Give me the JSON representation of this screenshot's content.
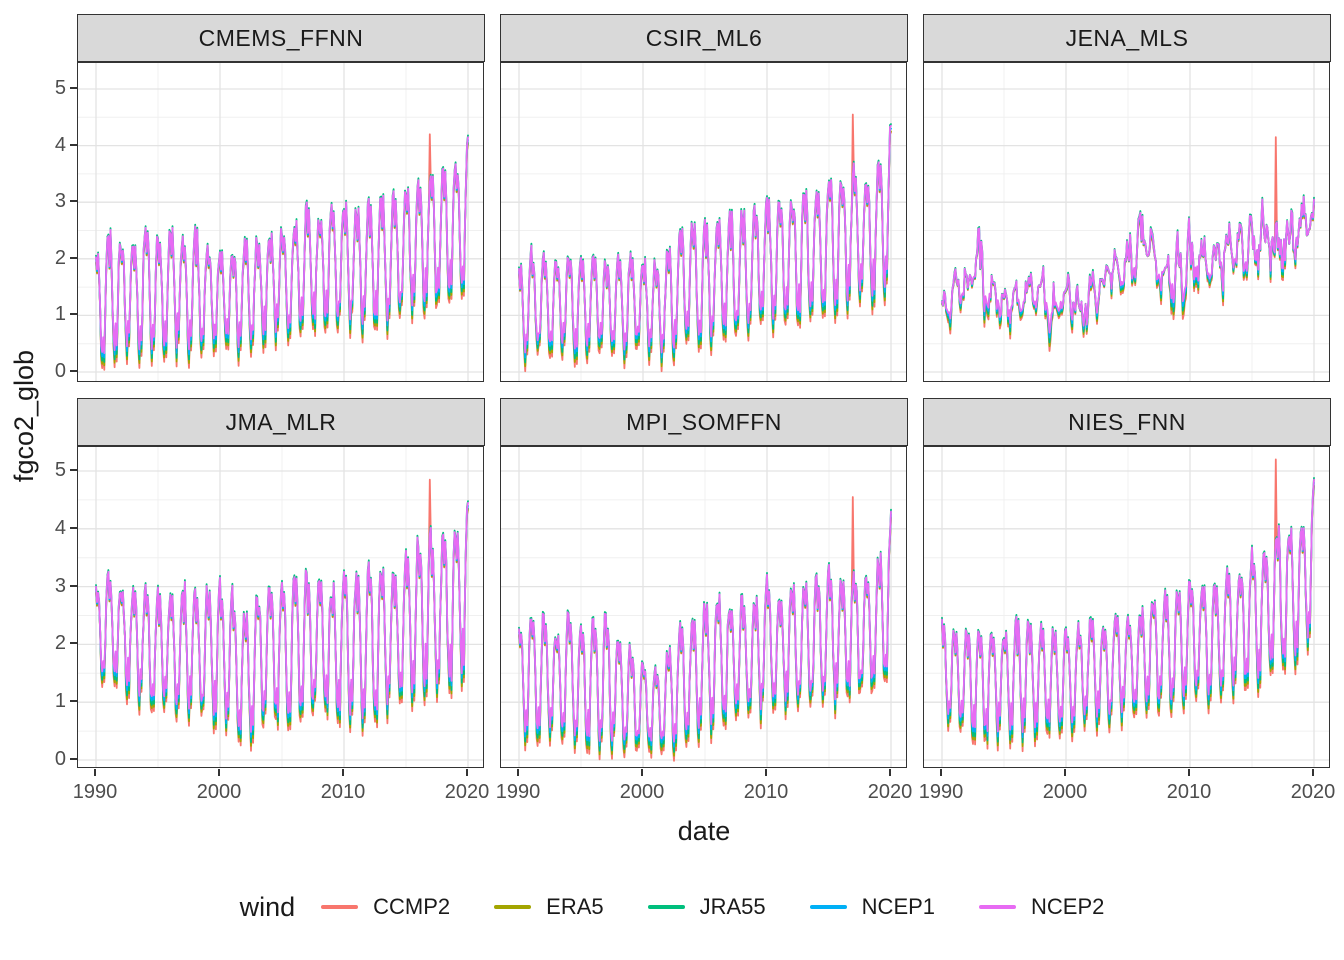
{
  "figure": {
    "y_axis_label": "fgco2_glob",
    "x_axis_label": "date",
    "x_ticks": [
      1990,
      2000,
      2010,
      2020
    ],
    "y_ticks": [
      0,
      1,
      2,
      3,
      4,
      5
    ],
    "panel_background": "#ffffff",
    "strip_fill": "#d9d9d9",
    "panel_border_color": "#333333",
    "grid_major_color": "#e3e3e3",
    "grid_minor_color": "#f0f0f0",
    "tick_label_color": "#4d4d4d"
  },
  "legend": {
    "title": "wind",
    "position": "bottom"
  },
  "chart_data": {
    "type": "line",
    "title": "",
    "xlabel": "date",
    "ylabel": "fgco2_glob",
    "x_range": [
      1990,
      2020
    ],
    "x_resolution": "monthly",
    "y_ticks": [
      0,
      1,
      2,
      3,
      4,
      5
    ],
    "ylim": [
      -0.2,
      5.45
    ],
    "grid": true,
    "legend_position": "bottom",
    "series": [
      {
        "name": "CCMP2",
        "color": "#F8766D"
      },
      {
        "name": "ERA5",
        "color": "#A3A500"
      },
      {
        "name": "JRA55",
        "color": "#00BF7D"
      },
      {
        "name": "NCEP1",
        "color": "#00B0F6"
      },
      {
        "name": "NCEP2",
        "color": "#E76BF3"
      }
    ],
    "facets": [
      {
        "title": "CMEMS_FFNN",
        "noisy": false,
        "years": [
          1990,
          1991,
          1992,
          1993,
          1994,
          1995,
          1996,
          1997,
          1998,
          1999,
          2000,
          2001,
          2002,
          2003,
          2004,
          2005,
          2006,
          2007,
          2008,
          2009,
          2010,
          2011,
          2012,
          2013,
          2014,
          2015,
          2016,
          2017,
          2018,
          2019,
          2020
        ],
        "seasonal_max": [
          2.15,
          2.55,
          2.35,
          2.35,
          2.65,
          2.5,
          2.55,
          2.4,
          2.55,
          2.2,
          2.1,
          2.2,
          2.3,
          2.35,
          2.5,
          2.55,
          2.6,
          2.9,
          2.75,
          2.95,
          3.0,
          2.9,
          3.05,
          3.1,
          3.1,
          3.3,
          3.3,
          3.55,
          3.6,
          3.65,
          4.15
        ],
        "seasonal_min": [
          0.25,
          0.35,
          0.45,
          0.55,
          0.45,
          0.35,
          0.5,
          0.55,
          0.45,
          0.6,
          0.65,
          0.6,
          0.45,
          0.75,
          0.75,
          0.8,
          0.8,
          0.85,
          1.0,
          0.9,
          1.0,
          1.05,
          0.85,
          0.9,
          1.1,
          1.2,
          1.25,
          1.3,
          1.3,
          1.45,
          1.6
        ],
        "end_value": 4.15,
        "ccmp2_spike": {
          "year": 2016.9,
          "value": 4.2
        }
      },
      {
        "title": "CSIR_ML6",
        "noisy": false,
        "years": [
          1990,
          1991,
          1992,
          1993,
          1994,
          1995,
          1996,
          1997,
          1998,
          1999,
          2000,
          2001,
          2002,
          2003,
          2004,
          2005,
          2006,
          2007,
          2008,
          2009,
          2010,
          2011,
          2012,
          2013,
          2014,
          2015,
          2016,
          2017,
          2018,
          2019,
          2020
        ],
        "seasonal_max": [
          1.9,
          2.15,
          2.1,
          2.0,
          2.1,
          2.0,
          2.1,
          1.95,
          2.1,
          2.05,
          2.0,
          1.95,
          2.1,
          2.5,
          2.6,
          2.7,
          2.65,
          2.8,
          2.85,
          2.9,
          3.1,
          3.0,
          3.1,
          3.2,
          3.25,
          3.5,
          3.5,
          3.6,
          3.4,
          3.65,
          4.35
        ],
        "seasonal_min": [
          0.45,
          0.4,
          0.5,
          0.55,
          0.5,
          0.45,
          0.55,
          0.5,
          0.4,
          0.55,
          0.55,
          0.5,
          0.35,
          0.6,
          0.7,
          0.65,
          0.8,
          0.75,
          0.9,
          0.9,
          1.0,
          1.05,
          0.95,
          1.0,
          1.1,
          1.2,
          1.3,
          1.35,
          1.4,
          1.5,
          1.7
        ],
        "end_value": 4.35,
        "ccmp2_spike": {
          "year": 2016.9,
          "value": 4.55
        }
      },
      {
        "title": "JENA_MLS",
        "noisy": true,
        "years": [
          1990,
          1991,
          1992,
          1993,
          1994,
          1995,
          1996,
          1997,
          1998,
          1999,
          2000,
          2001,
          2002,
          2003,
          2004,
          2005,
          2006,
          2007,
          2008,
          2009,
          2010,
          2011,
          2012,
          2013,
          2014,
          2015,
          2016,
          2017,
          2018,
          2019,
          2020
        ],
        "seasonal_max": [
          1.45,
          1.9,
          2.1,
          2.75,
          1.95,
          1.6,
          1.9,
          1.85,
          2.1,
          1.9,
          1.75,
          1.55,
          1.65,
          2.0,
          2.35,
          2.45,
          2.9,
          2.5,
          2.35,
          2.5,
          2.9,
          2.4,
          2.55,
          2.8,
          2.7,
          2.9,
          3.1,
          3.15,
          2.9,
          3.1,
          3.05
        ],
        "seasonal_min": [
          0.8,
          0.95,
          1.0,
          1.1,
          0.9,
          0.8,
          0.85,
          0.75,
          0.85,
          0.7,
          0.9,
          0.75,
          0.55,
          1.2,
          1.3,
          1.25,
          1.3,
          1.4,
          1.3,
          1.2,
          1.4,
          1.5,
          1.3,
          1.35,
          1.5,
          1.45,
          1.5,
          1.55,
          1.65,
          1.7,
          1.9
        ],
        "end_value": 3.05,
        "ccmp2_spike": {
          "year": 2016.9,
          "value": 4.15
        }
      },
      {
        "title": "JMA_MLR",
        "noisy": false,
        "years": [
          1990,
          1991,
          1992,
          1993,
          1994,
          1995,
          1996,
          1997,
          1998,
          1999,
          2000,
          2001,
          2002,
          2003,
          2004,
          2005,
          2006,
          2007,
          2008,
          2009,
          2010,
          2011,
          2012,
          2013,
          2014,
          2015,
          2016,
          2017,
          2018,
          2019,
          2020
        ],
        "seasonal_max": [
          3.05,
          3.3,
          3.05,
          2.95,
          3.0,
          2.9,
          2.85,
          3.05,
          3.1,
          2.95,
          3.1,
          2.9,
          2.45,
          2.85,
          3.05,
          3.05,
          3.1,
          3.3,
          3.15,
          3.0,
          3.35,
          3.25,
          3.4,
          3.35,
          3.3,
          3.65,
          3.85,
          3.9,
          3.85,
          4.1,
          4.45
        ],
        "seasonal_min": [
          1.5,
          1.4,
          1.45,
          1.3,
          1.1,
          1.0,
          1.05,
          0.9,
          0.85,
          0.9,
          0.8,
          0.55,
          0.4,
          0.75,
          0.9,
          0.8,
          0.85,
          0.9,
          1.1,
          0.85,
          0.8,
          0.75,
          0.7,
          1.0,
          1.15,
          1.2,
          1.35,
          1.45,
          1.4,
          1.35,
          1.75
        ],
        "end_value": 4.45,
        "ccmp2_spike": {
          "year": 2016.9,
          "value": 4.85
        }
      },
      {
        "title": "MPI_SOMFFN",
        "noisy": false,
        "years": [
          1990,
          1991,
          1992,
          1993,
          1994,
          1995,
          1996,
          1997,
          1998,
          1999,
          2000,
          2001,
          2002,
          2003,
          2004,
          2005,
          2006,
          2007,
          2008,
          2009,
          2010,
          2011,
          2012,
          2013,
          2014,
          2015,
          2016,
          2017,
          2018,
          2019,
          2020
        ],
        "seasonal_max": [
          2.3,
          2.55,
          2.5,
          2.2,
          2.55,
          2.35,
          2.4,
          2.5,
          2.2,
          1.95,
          1.75,
          1.55,
          1.85,
          2.3,
          2.45,
          2.7,
          2.9,
          2.7,
          2.85,
          2.8,
          3.15,
          2.9,
          3.05,
          3.1,
          3.15,
          3.35,
          3.15,
          3.3,
          3.2,
          3.5,
          4.3
        ],
        "seasonal_min": [
          0.6,
          0.55,
          0.6,
          0.65,
          0.5,
          0.4,
          0.45,
          0.35,
          0.4,
          0.35,
          0.3,
          0.35,
          0.3,
          0.5,
          0.6,
          0.7,
          0.75,
          0.9,
          1.0,
          0.95,
          1.0,
          1.1,
          1.05,
          1.1,
          1.15,
          1.1,
          1.2,
          1.25,
          1.3,
          1.35,
          1.55
        ],
        "end_value": 4.3,
        "ccmp2_spike": {
          "year": 2016.9,
          "value": 4.55
        }
      },
      {
        "title": "NIES_FNN",
        "noisy": false,
        "years": [
          1990,
          1991,
          1992,
          1993,
          1994,
          1995,
          1996,
          1997,
          1998,
          1999,
          2000,
          2001,
          2002,
          2003,
          2004,
          2005,
          2006,
          2007,
          2008,
          2009,
          2010,
          2011,
          2012,
          2013,
          2014,
          2015,
          2016,
          2017,
          2018,
          2019,
          2020
        ],
        "seasonal_max": [
          2.45,
          2.3,
          2.25,
          2.3,
          2.25,
          2.2,
          2.4,
          2.45,
          2.3,
          2.25,
          2.3,
          2.3,
          2.4,
          2.35,
          2.5,
          2.45,
          2.6,
          2.85,
          2.9,
          2.95,
          3.2,
          3.0,
          3.1,
          3.25,
          3.3,
          3.6,
          3.7,
          4.05,
          4.0,
          4.15,
          4.85
        ],
        "seasonal_min": [
          0.85,
          0.7,
          0.6,
          0.55,
          0.5,
          0.65,
          0.55,
          0.6,
          0.7,
          0.55,
          0.75,
          0.7,
          0.8,
          0.85,
          0.85,
          0.9,
          0.95,
          1.0,
          1.1,
          1.05,
          1.15,
          1.25,
          1.2,
          1.3,
          1.35,
          1.5,
          1.55,
          1.7,
          1.8,
          2.0,
          2.2
        ],
        "end_value": 4.85,
        "ccmp2_spike": {
          "year": 2016.9,
          "value": 5.2
        }
      }
    ]
  }
}
